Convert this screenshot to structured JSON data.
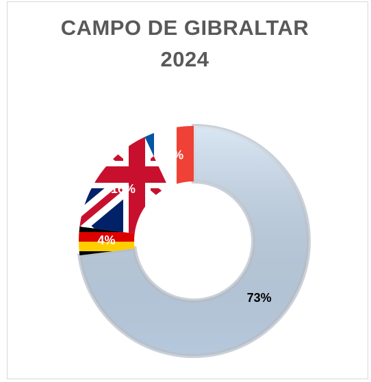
{
  "chart_data": {
    "type": "donut",
    "title": "CAMPO DE GIBRALTAR 2024",
    "values": [
      73,
      4,
      16,
      7
    ],
    "value_labels": [
      "73%",
      "4%",
      "16%",
      "7%"
    ],
    "colors": [
      "#c6daef",
      "#dd0000",
      "#012169",
      "#ffffff"
    ]
  }
}
